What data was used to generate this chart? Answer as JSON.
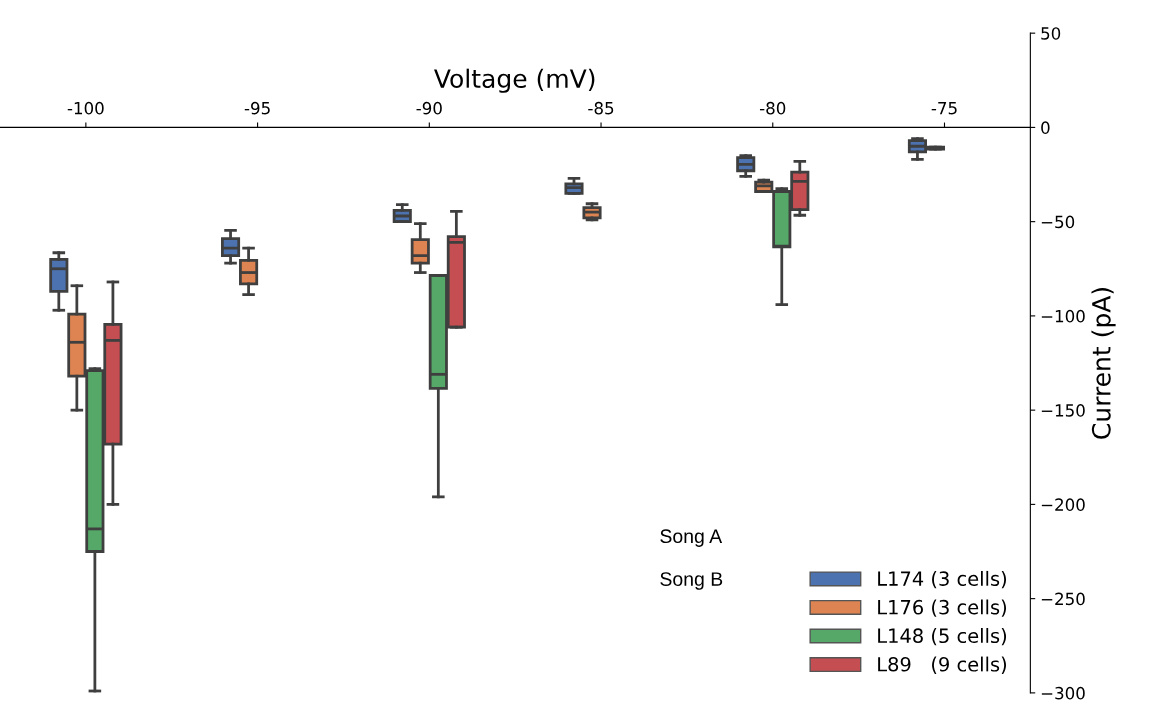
{
  "chart_data": {
    "type": "box",
    "xlabel": "Voltage (mV)",
    "ylabel": "Current (pA)",
    "categories": [
      "-100",
      "-95",
      "-90",
      "-85",
      "-80",
      "-75"
    ],
    "ylim": [
      -300,
      50
    ],
    "yticks": [
      50,
      0,
      {
        "value": -50,
        "label": "−50"
      },
      {
        "value": -100,
        "label": "−100"
      },
      {
        "value": -150,
        "label": "−150"
      },
      {
        "value": -200,
        "label": "−200"
      },
      {
        "value": -250,
        "label": "−250"
      },
      {
        "value": -300,
        "label": "−300"
      }
    ],
    "grid": false,
    "legend": "bottom right",
    "annotations": [
      "Song A",
      "Song B"
    ],
    "series": [
      {
        "name": "L174 (3 cells)",
        "color": "#4c72b0",
        "boxes": [
          {
            "low": -97,
            "q1": -87,
            "median": -75,
            "q3": -70,
            "high": -66.5
          },
          {
            "low": -72,
            "q1": -68,
            "median": -64,
            "q3": -59,
            "high": -54.6
          },
          {
            "low": -50,
            "q1": -50,
            "median": -47,
            "q3": -44,
            "high": -41
          },
          {
            "low": -35,
            "q1": -35,
            "median": -32,
            "q3": -30,
            "high": -27
          },
          {
            "low": -26,
            "q1": -23,
            "median": -19.6,
            "q3": -16,
            "high": -15
          },
          {
            "low": -17,
            "q1": -13,
            "median": -10,
            "q3": -7,
            "high": -6
          }
        ]
      },
      {
        "name": "L176 (3 cells)",
        "color": "#dd8452",
        "boxes": [
          {
            "low": -150,
            "q1": -132,
            "median": -114,
            "q3": -99,
            "high": -84
          },
          {
            "low": -88.7,
            "q1": -83,
            "median": -77,
            "q3": -70.5,
            "high": -64
          },
          {
            "low": -77,
            "q1": -72,
            "median": -68,
            "q3": -59.5,
            "high": -51
          },
          {
            "low": -49,
            "q1": -48,
            "median": -45,
            "q3": -42.5,
            "high": -40.5
          },
          {
            "low": -34,
            "q1": -34,
            "median": -31,
            "q3": -29,
            "high": -28
          },
          {
            "low": -11.5,
            "q1": -11.5,
            "median": -11,
            "q3": -10.5,
            "high": -10.5
          }
        ]
      },
      {
        "name": "L148 (5 cells)",
        "color": "#55a868",
        "boxes": [
          {
            "low": -299,
            "q1": -225,
            "median": -213,
            "q3": -129,
            "high": -128
          },
          null,
          {
            "low": -196,
            "q1": -138.5,
            "median": -131,
            "q3": -78.5,
            "high": -78.5
          },
          null,
          {
            "low": -94,
            "q1": -63.4,
            "median": -63,
            "q3": -34,
            "high": -32.5
          },
          null
        ]
      },
      {
        "name": "L89   (9 cells)",
        "color": "#c44e52",
        "boxes": [
          {
            "low": -200,
            "q1": -168,
            "median": -113,
            "q3": -104.5,
            "high": -82
          },
          null,
          {
            "low": -106,
            "q1": -106,
            "median": -61,
            "q3": -58,
            "high": -44.5
          },
          null,
          {
            "low": -46.6,
            "q1": -43.6,
            "median": -28.6,
            "q3": -23.7,
            "high": -18
          },
          null
        ]
      }
    ]
  }
}
